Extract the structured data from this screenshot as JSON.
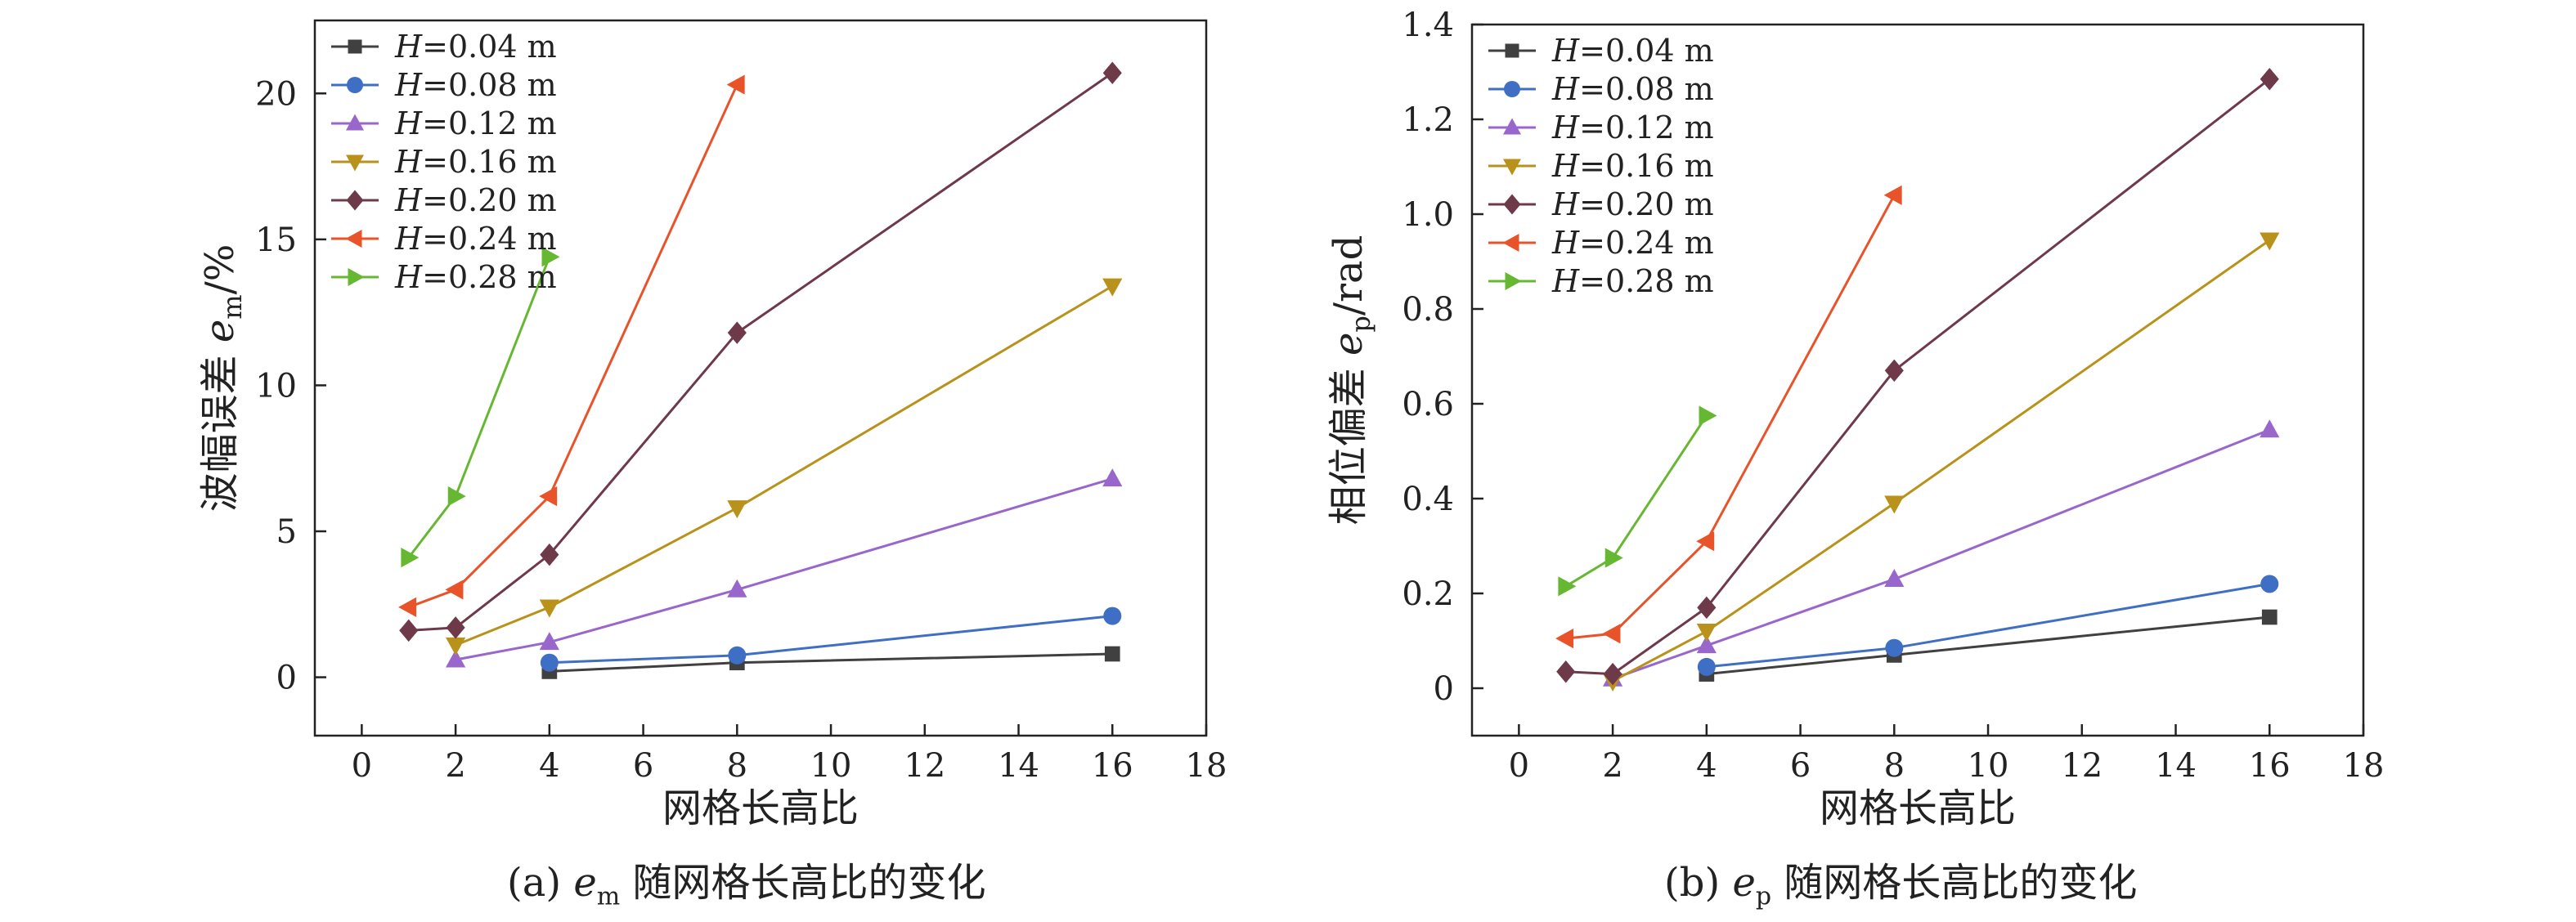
{
  "figure": {
    "caption_a_prefix": "(a) ",
    "caption_a_var": "e",
    "caption_a_sub": "m",
    "caption_a_rest": " 随网格长高比的变化",
    "caption_b_prefix": "(b) ",
    "caption_b_var": "e",
    "caption_b_sub": "p",
    "caption_b_rest": " 随网格长高比的变化"
  },
  "chart_data": [
    {
      "type": "line",
      "title": "",
      "xlabel": "网格长高比",
      "ylabel": "波幅误差 e_m/%",
      "ylabel_parts": {
        "text": "波幅误差 ",
        "var": "e",
        "sub": "m",
        "unit": "/%"
      },
      "xlim": [
        -1,
        18
      ],
      "ylim": [
        -2,
        22.5
      ],
      "xticks": [
        0,
        2,
        4,
        6,
        8,
        10,
        12,
        14,
        16,
        18
      ],
      "yticks": [
        0,
        5,
        10,
        15,
        20
      ],
      "legend_position": "top-left",
      "series": [
        {
          "name": "H=0.04 m",
          "color": "#404040",
          "marker": "square",
          "x": [
            4,
            8,
            16
          ],
          "y": [
            0.2,
            0.5,
            0.8
          ]
        },
        {
          "name": "H=0.08 m",
          "color": "#3f6fc4",
          "marker": "circle",
          "x": [
            4,
            8,
            16
          ],
          "y": [
            0.5,
            0.75,
            2.1
          ]
        },
        {
          "name": "H=0.12 m",
          "color": "#9966cc",
          "marker": "triangle-up",
          "x": [
            2,
            4,
            8,
            16
          ],
          "y": [
            0.6,
            1.2,
            3.0,
            6.8
          ]
        },
        {
          "name": "H=0.16 m",
          "color": "#b8921a",
          "marker": "triangle-down",
          "x": [
            2,
            4,
            8,
            16
          ],
          "y": [
            1.1,
            2.4,
            5.8,
            13.4
          ]
        },
        {
          "name": "H=0.20 m",
          "color": "#6e3a4a",
          "marker": "diamond",
          "x": [
            1,
            2,
            4,
            8,
            16
          ],
          "y": [
            1.6,
            1.7,
            4.2,
            11.8,
            20.7
          ]
        },
        {
          "name": "H=0.24 m",
          "color": "#e8532a",
          "marker": "triangle-left",
          "x": [
            1,
            2,
            4,
            8
          ],
          "y": [
            2.4,
            3.0,
            6.2,
            20.3
          ]
        },
        {
          "name": "H=0.28 m",
          "color": "#66b832",
          "marker": "triangle-right",
          "x": [
            1,
            2,
            4
          ],
          "y": [
            4.1,
            6.2,
            14.4
          ]
        }
      ]
    },
    {
      "type": "line",
      "title": "",
      "xlabel": "网格长高比",
      "ylabel": "相位偏差 e_p/rad",
      "ylabel_parts": {
        "text": "相位偏差 ",
        "var": "e",
        "sub": "p",
        "unit": "/rad"
      },
      "xlim": [
        -1,
        18
      ],
      "ylim": [
        -0.1,
        1.4
      ],
      "xticks": [
        0,
        2,
        4,
        6,
        8,
        10,
        12,
        14,
        16,
        18
      ],
      "yticks": [
        0,
        0.2,
        0.4,
        0.6,
        0.8,
        1.0,
        1.2,
        1.4
      ],
      "legend_position": "top-left",
      "series": [
        {
          "name": "H=0.04 m",
          "color": "#404040",
          "marker": "square",
          "x": [
            4,
            8,
            16
          ],
          "y": [
            0.03,
            0.07,
            0.15
          ]
        },
        {
          "name": "H=0.08 m",
          "color": "#3f6fc4",
          "marker": "circle",
          "x": [
            4,
            8,
            16
          ],
          "y": [
            0.045,
            0.085,
            0.22
          ]
        },
        {
          "name": "H=0.12 m",
          "color": "#9966cc",
          "marker": "triangle-up",
          "x": [
            2,
            4,
            8,
            16
          ],
          "y": [
            0.02,
            0.09,
            0.23,
            0.545
          ]
        },
        {
          "name": "H=0.16 m",
          "color": "#b8921a",
          "marker": "triangle-down",
          "x": [
            2,
            4,
            8,
            16
          ],
          "y": [
            0.015,
            0.12,
            0.39,
            0.945
          ]
        },
        {
          "name": "H=0.20 m",
          "color": "#6e3a4a",
          "marker": "diamond",
          "x": [
            1,
            2,
            4,
            8,
            16
          ],
          "y": [
            0.035,
            0.03,
            0.17,
            0.67,
            1.285
          ]
        },
        {
          "name": "H=0.24 m",
          "color": "#e8532a",
          "marker": "triangle-left",
          "x": [
            1,
            2,
            4,
            8
          ],
          "y": [
            0.105,
            0.115,
            0.31,
            1.04
          ]
        },
        {
          "name": "H=0.28 m",
          "color": "#66b832",
          "marker": "triangle-right",
          "x": [
            1,
            2,
            4
          ],
          "y": [
            0.215,
            0.275,
            0.575
          ]
        }
      ]
    }
  ]
}
